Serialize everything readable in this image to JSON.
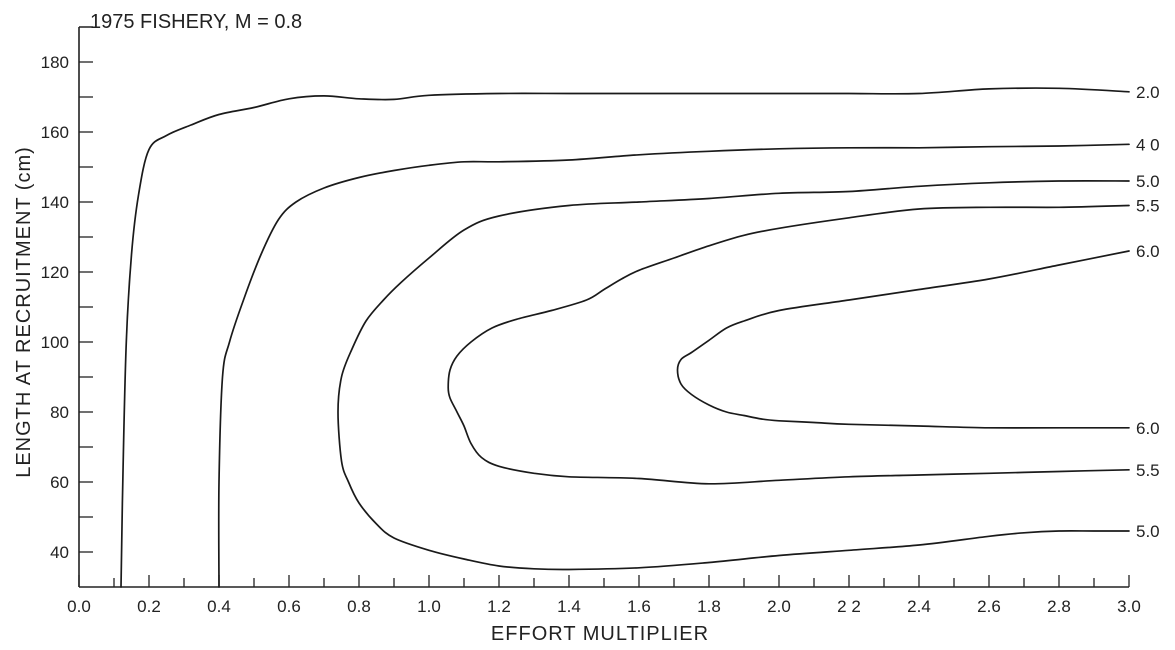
{
  "chart_data": {
    "type": "line",
    "title": "1975 FISHERY,  M = 0.8",
    "xlabel": "EFFORT  MULTIPLIER",
    "ylabel": "LENGTH  AT  RECRUITMENT (cm)",
    "xlim": [
      0.0,
      3.0
    ],
    "ylim": [
      30,
      190
    ],
    "x_ticks": [
      0.0,
      0.2,
      0.4,
      0.6,
      0.8,
      1.0,
      1.2,
      1.4,
      1.6,
      1.8,
      2.0,
      2.2,
      2.4,
      2.6,
      2.8,
      3.0
    ],
    "x_tick_labels": [
      "0.0",
      "0.2",
      "0.4",
      "0.6",
      "0.8",
      "1.0",
      "1.2",
      "1.4",
      "1.6",
      "1.8",
      "2.0",
      "2 2",
      "2.4",
      "2.6",
      "2.8",
      "3.0"
    ],
    "y_ticks": [
      40,
      60,
      80,
      100,
      120,
      140,
      160,
      180
    ],
    "y_tick_labels": [
      "40",
      "60",
      "80",
      "100",
      "120",
      "140",
      "160",
      "180"
    ],
    "grid": false,
    "series": [
      {
        "name": "2.0",
        "x": [
          0.12,
          0.125,
          0.135,
          0.15,
          0.17,
          0.2,
          0.25,
          0.32,
          0.4,
          0.5,
          0.6,
          0.7,
          0.8,
          0.9,
          1.0,
          1.2,
          1.4,
          1.6,
          1.8,
          2.0,
          2.2,
          2.4,
          2.6,
          2.8,
          3.0
        ],
        "y": [
          30,
          60,
          100,
          125,
          142,
          155,
          159,
          162,
          165,
          167,
          169.5,
          170.3,
          169.5,
          169.3,
          170.5,
          171,
          171,
          171,
          171,
          171,
          171,
          171,
          172.3,
          172.5,
          171.5
        ]
      },
      {
        "name": "4.0",
        "x": [
          0.4,
          0.4,
          0.41,
          0.43,
          0.47,
          0.52,
          0.57,
          0.62,
          0.7,
          0.8,
          0.9,
          1.0,
          1.1,
          1.2,
          1.4,
          1.6,
          1.8,
          2.0,
          2.2,
          2.4,
          2.6,
          2.8,
          3.0
        ],
        "y": [
          30,
          60,
          90,
          100,
          112,
          125,
          135,
          140,
          144,
          147,
          149,
          150.5,
          151.5,
          151.5,
          152,
          153.5,
          154.5,
          155.2,
          155.5,
          155.5,
          155.8,
          156,
          156.5
        ]
      },
      {
        "name": "5.0",
        "x": [
          3.0,
          2.9,
          2.8,
          2.7,
          2.6,
          2.4,
          2.2,
          2.0,
          1.8,
          1.6,
          1.4,
          1.3,
          1.2,
          1.1,
          1.0,
          0.9,
          0.85,
          0.8,
          0.77,
          0.75,
          0.74,
          0.75,
          0.78,
          0.82,
          0.87,
          0.92,
          1.0,
          1.1,
          1.2,
          1.4,
          1.6,
          1.8,
          2.0,
          2.2,
          2.4,
          2.6,
          2.8,
          3.0
        ],
        "y": [
          46,
          46,
          46,
          45.5,
          44.5,
          42,
          40.5,
          39,
          37,
          35.5,
          35,
          35.2,
          36,
          38,
          40.5,
          44,
          48,
          54,
          60,
          66,
          80,
          90,
          98,
          106,
          112,
          117,
          124,
          132,
          136,
          139,
          140,
          141,
          142.5,
          143,
          144.5,
          145.5,
          146,
          146
        ]
      },
      {
        "name": "5.5",
        "x": [
          3.0,
          2.8,
          2.6,
          2.4,
          2.2,
          2.0,
          1.8,
          1.6,
          1.4,
          1.3,
          1.2,
          1.15,
          1.12,
          1.1,
          1.08,
          1.06,
          1.055,
          1.06,
          1.08,
          1.12,
          1.18,
          1.25,
          1.35,
          1.45,
          1.5,
          1.55,
          1.6,
          1.7,
          1.8,
          1.9,
          2.0,
          2.2,
          2.4,
          2.6,
          2.8,
          3.0
        ],
        "y": [
          63.5,
          63,
          62.5,
          62,
          61.5,
          60.5,
          59.5,
          61,
          61.5,
          62.5,
          64.5,
          67,
          71,
          76,
          80,
          84,
          87,
          92,
          96,
          100,
          104,
          106.5,
          109,
          112,
          115,
          118,
          120.5,
          124,
          127.5,
          130.5,
          132.5,
          135.5,
          138,
          138.5,
          138.5,
          139
        ]
      },
      {
        "name": "6.0",
        "x": [
          3.0,
          2.9,
          2.8,
          2.6,
          2.4,
          2.2,
          2.1,
          2.0,
          1.95,
          1.9,
          1.85,
          1.8,
          1.75,
          1.72,
          1.71,
          1.72,
          1.75,
          1.8,
          1.85,
          1.9,
          2.0,
          2.2,
          2.4,
          2.6,
          2.8,
          3.0
        ],
        "y": [
          75.5,
          75.5,
          75.5,
          75.5,
          76,
          76.5,
          77,
          77.5,
          78,
          79,
          80,
          82,
          85,
          88,
          92,
          95,
          97,
          100.5,
          104,
          106,
          109,
          112,
          115,
          118,
          122,
          126
        ]
      }
    ],
    "contour_labels": [
      {
        "text": "2.0",
        "x": 3.0,
        "y": 171.5
      },
      {
        "text": "4.0",
        "x": 3.0,
        "y": 156.5
      },
      {
        "text": "5.0",
        "x": 3.0,
        "y": 146
      },
      {
        "text": "5.5",
        "x": 3.0,
        "y": 139
      },
      {
        "text": "6.0",
        "x": 3.0,
        "y": 126
      },
      {
        "text": "6.0",
        "x": 3.0,
        "y": 75.5
      },
      {
        "text": "5.5",
        "x": 3.0,
        "y": 63.5
      },
      {
        "text": "5.0",
        "x": 3.0,
        "y": 46
      }
    ],
    "contour_label_text": [
      "2.0",
      "4 0",
      "5.0",
      "5.5",
      "6.0",
      "6.0",
      "5.5",
      "5.0"
    ]
  }
}
